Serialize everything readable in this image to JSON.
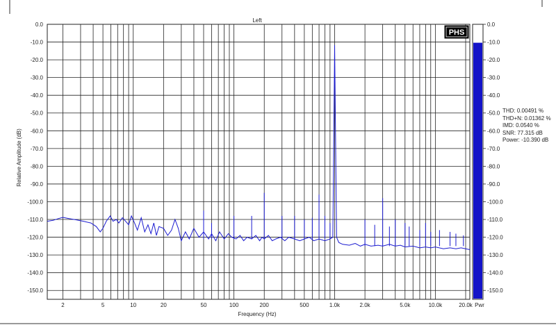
{
  "chart_data": {
    "type": "line",
    "title": "Left",
    "xlabel": "Frequency (Hz)",
    "ylabel": "Relative Amplitude (dB)",
    "x_scale": "log",
    "xlim": [
      1.4,
      22000
    ],
    "ylim": [
      -155,
      0
    ],
    "x_ticks": [
      "2",
      "5",
      "10",
      "20",
      "50",
      "100",
      "200",
      "500",
      "1.0k",
      "2.0k",
      "5.0k",
      "10.0k",
      "20.0k"
    ],
    "y_ticks": [
      "0.0",
      "-10.0",
      "-20.0",
      "-30.0",
      "-40.0",
      "-50.0",
      "-60.0",
      "-70.0",
      "-80.0",
      "-90.0",
      "-100.0",
      "-110.0",
      "-120.0",
      "-130.0",
      "-140.0",
      "-150.0"
    ],
    "grid": true,
    "series": [
      {
        "color": "#1a1ad0",
        "points": [
          [
            1.4,
            -111
          ],
          [
            1.6,
            -110.5
          ],
          [
            1.8,
            -109.5
          ],
          [
            2.0,
            -108.8
          ],
          [
            2.3,
            -109.5
          ],
          [
            2.7,
            -110.2
          ],
          [
            3.2,
            -111
          ],
          [
            3.8,
            -112
          ],
          [
            4.3,
            -114
          ],
          [
            4.7,
            -117
          ],
          [
            5.0,
            -115
          ],
          [
            5.4,
            -111
          ],
          [
            5.9,
            -108
          ],
          [
            6.3,
            -111
          ],
          [
            6.8,
            -110
          ],
          [
            7.2,
            -112
          ],
          [
            7.8,
            -109
          ],
          [
            8.4,
            -111
          ],
          [
            9.0,
            -113
          ],
          [
            9.6,
            -108
          ],
          [
            10.3,
            -112
          ],
          [
            11,
            -116
          ],
          [
            12,
            -109
          ],
          [
            13,
            -117
          ],
          [
            14,
            -113
          ],
          [
            15,
            -118
          ],
          [
            16,
            -112
          ],
          [
            17,
            -119
          ],
          [
            18,
            -114
          ],
          [
            20,
            -115
          ],
          [
            22,
            -119
          ],
          [
            24,
            -116
          ],
          [
            26,
            -110
          ],
          [
            28,
            -115
          ],
          [
            30,
            -122
          ],
          [
            33,
            -117
          ],
          [
            36,
            -121
          ],
          [
            40,
            -115
          ],
          [
            45,
            -120
          ],
          [
            50,
            -117
          ],
          [
            56,
            -121
          ],
          [
            60,
            -118
          ],
          [
            66,
            -122
          ],
          [
            72,
            -117
          ],
          [
            80,
            -121
          ],
          [
            88,
            -118
          ],
          [
            95,
            -120
          ],
          [
            105,
            -121
          ],
          [
            115,
            -119
          ],
          [
            125,
            -122
          ],
          [
            135,
            -120
          ],
          [
            150,
            -121
          ],
          [
            165,
            -119
          ],
          [
            180,
            -122
          ],
          [
            190,
            -120
          ],
          [
            200,
            -121
          ],
          [
            220,
            -119
          ],
          [
            240,
            -122
          ],
          [
            260,
            -121
          ],
          [
            290,
            -120
          ],
          [
            320,
            -122
          ],
          [
            350,
            -120
          ],
          [
            400,
            -121
          ],
          [
            450,
            -122
          ],
          [
            500,
            -121
          ],
          [
            560,
            -120
          ],
          [
            620,
            -122
          ],
          [
            700,
            -121
          ],
          [
            800,
            -122
          ],
          [
            900,
            -121
          ],
          [
            960,
            -120
          ],
          [
            1000,
            -11.7
          ],
          [
            1045,
            -120
          ],
          [
            1100,
            -123
          ],
          [
            1200,
            -124
          ],
          [
            1400,
            -124.5
          ],
          [
            1600,
            -123.5
          ],
          [
            1800,
            -125
          ],
          [
            2000,
            -124
          ],
          [
            2300,
            -125
          ],
          [
            2700,
            -124.5
          ],
          [
            3000,
            -125
          ],
          [
            3500,
            -124
          ],
          [
            4000,
            -125
          ],
          [
            4500,
            -124.5
          ],
          [
            5000,
            -125.5
          ],
          [
            6000,
            -125
          ],
          [
            7000,
            -126
          ],
          [
            8000,
            -125.5
          ],
          [
            9000,
            -126
          ],
          [
            10000,
            -125.5
          ],
          [
            12000,
            -126.5
          ],
          [
            14000,
            -126
          ],
          [
            16000,
            -126.5
          ],
          [
            18000,
            -126
          ],
          [
            20000,
            -126.5
          ],
          [
            22000,
            -127
          ]
        ]
      }
    ],
    "spurs": [
      [
        50,
        -105
      ],
      [
        60,
        -112
      ],
      [
        100,
        -108
      ],
      [
        150,
        -108
      ],
      [
        200,
        -95
      ],
      [
        300,
        -108
      ],
      [
        400,
        -108
      ],
      [
        500,
        -110
      ],
      [
        600,
        -109
      ],
      [
        700,
        -96
      ],
      [
        800,
        -108
      ],
      [
        900,
        -112
      ],
      [
        2000,
        -110
      ],
      [
        2500,
        -113
      ],
      [
        3000,
        -98
      ],
      [
        3500,
        -114
      ],
      [
        4000,
        -110
      ],
      [
        5000,
        -112
      ],
      [
        5500,
        -114
      ],
      [
        7000,
        -116
      ],
      [
        8000,
        -112
      ],
      [
        9000,
        -117
      ],
      [
        11000,
        -116
      ],
      [
        14000,
        -117
      ],
      [
        16000,
        -118
      ],
      [
        19000,
        -119
      ]
    ],
    "power_bar": {
      "label": "Pwr",
      "value": -10.39,
      "range": [
        -155,
        0
      ],
      "ticks": [
        "0.0",
        "-10.0",
        "-20.0",
        "-30.0",
        "-40.0",
        "-50.0",
        "-60.0",
        "-70.0",
        "-80.0",
        "-90.0",
        "-100.0",
        "-110.0",
        "-120.0",
        "-130.0",
        "-140.0",
        "-150.0"
      ],
      "fill_color": "#1414c8"
    },
    "stats": [
      "THD: 0.00491 %",
      "THD+N: 0.01362 %",
      "IMD: 0.0540 %",
      "SNR: 77.315 dB",
      "Power: -10.390 dB"
    ],
    "logo": "PHS",
    "colors": {
      "trace": "#1a1ad0",
      "grid": "#222222",
      "plot_bg": "#ffffff"
    }
  }
}
